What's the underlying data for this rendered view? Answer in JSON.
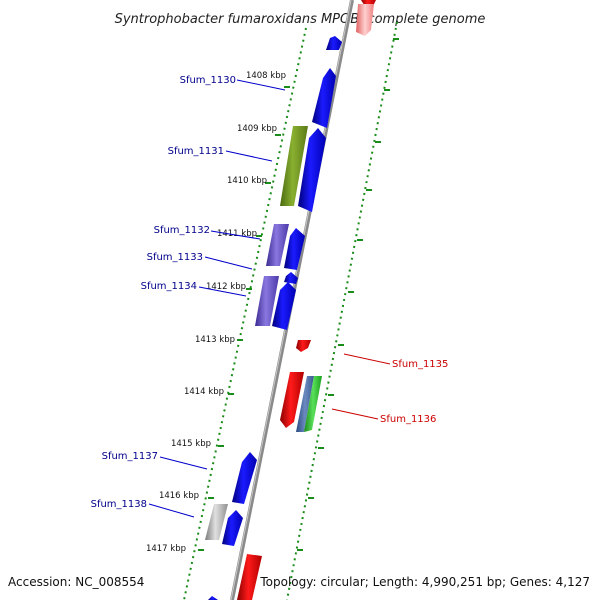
{
  "title": "Syntrophobacter fumaroxidans MPOB, complete genome",
  "accession": "Accession: NC_008554",
  "summary": "Topology: circular; Length: 4,990,251 bp; Genes: 4,127",
  "colors": {
    "forward_gene": "#0000ee",
    "reverse_gene": "#ee0000",
    "forward_label": "#00008b",
    "reverse_label": "#cc0000",
    "backbone": "#888888",
    "ruler_dots": "#1a8c1a"
  },
  "kbp_ticks": [
    "1408 kbp",
    "1409 kbp",
    "1410 kbp",
    "1411 kbp",
    "1412 kbp",
    "1413 kbp",
    "1414 kbp",
    "1415 kbp",
    "1416 kbp",
    "1417 kbp"
  ],
  "gene_labels": [
    {
      "name": "Sfum_1130",
      "strand": "forward"
    },
    {
      "name": "Sfum_1131",
      "strand": "forward"
    },
    {
      "name": "Sfum_1132",
      "strand": "forward"
    },
    {
      "name": "Sfum_1133",
      "strand": "forward"
    },
    {
      "name": "Sfum_1134",
      "strand": "forward"
    },
    {
      "name": "Sfum_1135",
      "strand": "reverse"
    },
    {
      "name": "Sfum_1136",
      "strand": "reverse"
    },
    {
      "name": "Sfum_1137",
      "strand": "forward"
    },
    {
      "name": "Sfum_1138",
      "strand": "forward"
    }
  ]
}
